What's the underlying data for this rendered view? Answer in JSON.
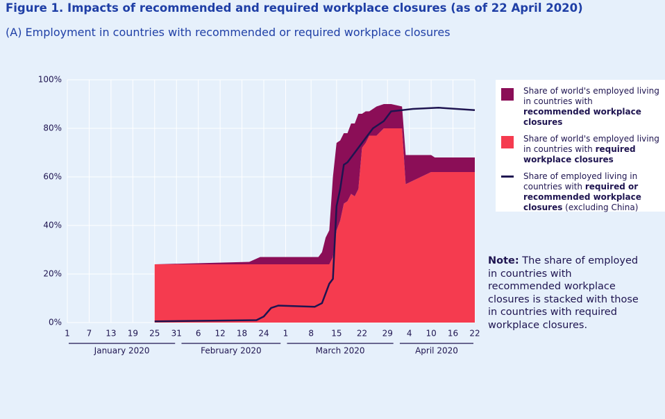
{
  "chart_data": {
    "type": "stacked-area-line",
    "title": "Figure 1. Impacts of recommended and required workplace closures (as of 22 April 2020)",
    "subtitle": "(A) Employment in countries with recommended or required workplace closures",
    "x": [
      "2020-01-25",
      "2020-02-20",
      "2020-02-23",
      "2020-03-10",
      "2020-03-11",
      "2020-03-12",
      "2020-03-13",
      "2020-03-14",
      "2020-03-15",
      "2020-03-16",
      "2020-03-17",
      "2020-03-18",
      "2020-03-19",
      "2020-03-20",
      "2020-03-21",
      "2020-03-22",
      "2020-03-23",
      "2020-03-24",
      "2020-03-26",
      "2020-03-28",
      "2020-03-30",
      "2020-04-02",
      "2020-04-03",
      "2020-04-10",
      "2020-04-11",
      "2020-04-22"
    ],
    "series": [
      {
        "name_parts": [
          {
            "text": "Share of world's employed living in countries with ",
            "bold": false
          },
          {
            "text": "required workplace closures",
            "bold": true
          }
        ],
        "color": "#f53b4f",
        "kind": "area",
        "values": [
          24,
          24,
          24,
          24,
          24,
          24,
          24,
          27,
          38,
          42,
          49,
          50,
          53,
          52,
          55,
          72,
          74,
          77,
          77,
          80,
          80,
          80,
          57,
          62,
          62,
          62
        ]
      },
      {
        "name_parts": [
          {
            "text": "Share of world's employed living in countries with ",
            "bold": false
          },
          {
            "text": "recommended workplace closures",
            "bold": true
          }
        ],
        "color": "#8b0e57",
        "kind": "area",
        "values": [
          0,
          1,
          3,
          3,
          5,
          11,
          14,
          33,
          36,
          33,
          29,
          28,
          29,
          30,
          31,
          14,
          13,
          10,
          12,
          10,
          10,
          9,
          12,
          7,
          6,
          6
        ]
      },
      {
        "name_parts": [
          {
            "text": "Share of employed living in countries with ",
            "bold": false
          },
          {
            "text": "required or recommended workplace closures",
            "bold": true
          },
          {
            "text": " (excluding China)",
            "bold": false
          }
        ],
        "color": "#1e1450",
        "kind": "line",
        "x": [
          "2020-01-25",
          "2020-02-22",
          "2020-02-24",
          "2020-02-26",
          "2020-02-28",
          "2020-03-09",
          "2020-03-11",
          "2020-03-13",
          "2020-03-14",
          "2020-03-15",
          "2020-03-16",
          "2020-03-17",
          "2020-03-18",
          "2020-03-20",
          "2020-03-22",
          "2020-03-25",
          "2020-03-28",
          "2020-03-30",
          "2020-04-05",
          "2020-04-12",
          "2020-04-22"
        ],
        "values": [
          0.5,
          1,
          2.5,
          6,
          7,
          6.5,
          8,
          16,
          18,
          48,
          55,
          65,
          66,
          70,
          74,
          80,
          83,
          87,
          88,
          88.5,
          87.5
        ]
      }
    ],
    "legend_order": [
      1,
      0,
      2
    ],
    "xlim": [
      "2020-01-01",
      "2020-04-22"
    ],
    "xticks": [
      {
        "value": "2020-01-01",
        "label": "1"
      },
      {
        "value": "2020-01-07",
        "label": "7"
      },
      {
        "value": "2020-01-13",
        "label": "13"
      },
      {
        "value": "2020-01-19",
        "label": "19"
      },
      {
        "value": "2020-01-25",
        "label": "25"
      },
      {
        "value": "2020-01-31",
        "label": "31"
      },
      {
        "value": "2020-02-06",
        "label": "6"
      },
      {
        "value": "2020-02-12",
        "label": "12"
      },
      {
        "value": "2020-02-18",
        "label": "18"
      },
      {
        "value": "2020-02-24",
        "label": "24"
      },
      {
        "value": "2020-03-01",
        "label": "1"
      },
      {
        "value": "2020-03-08",
        "label": "8"
      },
      {
        "value": "2020-03-15",
        "label": "15"
      },
      {
        "value": "2020-03-22",
        "label": "22"
      },
      {
        "value": "2020-03-29",
        "label": "29"
      },
      {
        "value": "2020-04-04",
        "label": "4"
      },
      {
        "value": "2020-04-10",
        "label": "10"
      },
      {
        "value": "2020-04-16",
        "label": "16"
      },
      {
        "value": "2020-04-22",
        "label": "22"
      }
    ],
    "months": [
      {
        "label": "January 2020",
        "start": "2020-01-01",
        "end": "2020-01-31"
      },
      {
        "label": "February 2020",
        "start": "2020-02-01",
        "end": "2020-02-29"
      },
      {
        "label": "March 2020",
        "start": "2020-03-01",
        "end": "2020-03-31"
      },
      {
        "label": "April 2020",
        "start": "2020-04-01",
        "end": "2020-04-22"
      }
    ],
    "ylim": [
      0,
      100
    ],
    "yticks": [
      {
        "value": 0,
        "label": "0%"
      },
      {
        "value": 20,
        "label": "20%"
      },
      {
        "value": 40,
        "label": "40%"
      },
      {
        "value": 60,
        "label": "60%"
      },
      {
        "value": 80,
        "label": "80%"
      },
      {
        "value": 100,
        "label": "100%"
      }
    ],
    "grid": true,
    "note": {
      "label": "Note:",
      "text": "The share of employed in countries with recommended workplace closures is stacked with those in countries with required workplace closures."
    }
  }
}
